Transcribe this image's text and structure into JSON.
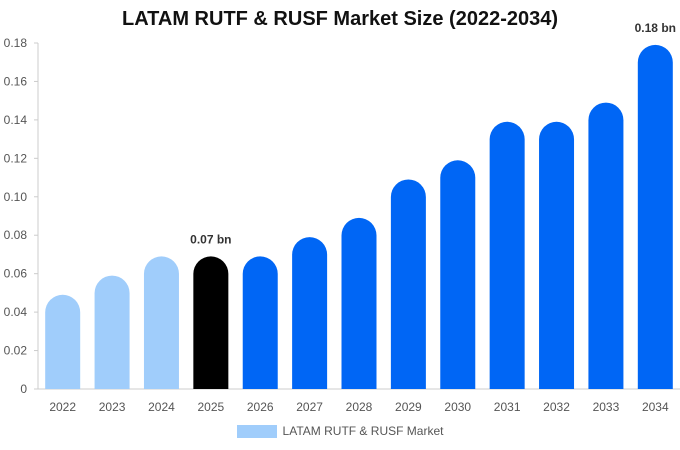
{
  "chart_data": {
    "type": "bar",
    "title": "LATAM RUTF & RUSF Market Size (2022-2034)",
    "categories": [
      "2022",
      "2023",
      "2024",
      "2025",
      "2026",
      "2027",
      "2028",
      "2029",
      "2030",
      "2031",
      "2032",
      "2033",
      "2034"
    ],
    "series": [
      {
        "name": "LATAM RUTF & RUSF Market",
        "values": [
          0.049,
          0.059,
          0.069,
          0.069,
          0.069,
          0.079,
          0.089,
          0.109,
          0.119,
          0.139,
          0.139,
          0.149,
          0.179
        ]
      }
    ],
    "y_ticks": [
      "0",
      "0.02",
      "0.04",
      "0.06",
      "0.08",
      "0.10",
      "0.12",
      "0.14",
      "0.16",
      "0.18"
    ],
    "ylim": [
      0,
      0.18
    ],
    "data_labels": [
      {
        "category": "2025",
        "text": "0.07 bn"
      },
      {
        "category": "2034",
        "text": "0.18 bn"
      }
    ],
    "colors": {
      "historical": "#a0cdfb",
      "base_year": "#000000",
      "forecast": "#0066f5"
    },
    "bar_color_groups": [
      "historical",
      "historical",
      "historical",
      "base_year",
      "forecast",
      "forecast",
      "forecast",
      "forecast",
      "forecast",
      "forecast",
      "forecast",
      "forecast",
      "forecast"
    ],
    "legend": {
      "position": "bottom"
    },
    "grid": false
  }
}
